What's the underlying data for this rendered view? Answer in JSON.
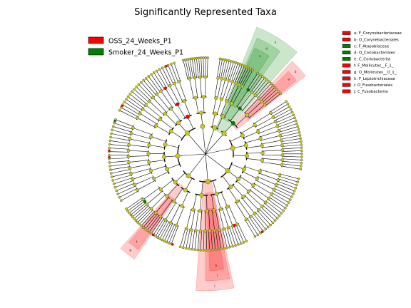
{
  "figure": {
    "title": "Significantly Represented Taxa"
  },
  "colors": {
    "oss": "#ff0000",
    "smoker": "#008000",
    "node_default": "#c8c819",
    "edge": "#000000"
  },
  "groups": [
    {
      "name": "OSS_24_Weeks_P1",
      "color": "#ff0000"
    },
    {
      "name": "Smoker_24_Weeks_P1",
      "color": "#008000"
    }
  ],
  "taxa_key": [
    {
      "letter": "a",
      "text": "a: F_Corynebacteriaceae",
      "group": "oss"
    },
    {
      "letter": "b",
      "text": "b: O_Corynebacteriales",
      "group": "oss"
    },
    {
      "letter": "c",
      "text": "c: F_Atopobiaceae",
      "group": "smoker"
    },
    {
      "letter": "d",
      "text": "d: O_Coriobacteriales",
      "group": "smoker"
    },
    {
      "letter": "e",
      "text": "e: C_Coriobacteriia",
      "group": "smoker"
    },
    {
      "letter": "f",
      "text": "f: F_Mollicutes__F_1_",
      "group": "oss"
    },
    {
      "letter": "g",
      "text": "g: O_Mollicutes__O_1_",
      "group": "oss"
    },
    {
      "letter": "h",
      "text": "h: F_Leptotrichiaceae",
      "group": "oss"
    },
    {
      "letter": "i",
      "text": "i: O_Fusobacteriales",
      "group": "oss"
    },
    {
      "letter": "j",
      "text": "j: C_Fusobacteriia",
      "group": "oss"
    }
  ],
  "highlighted_clades": [
    {
      "letter": "e",
      "group": "smoker",
      "level": 1
    },
    {
      "letter": "d",
      "group": "smoker",
      "level": 2
    },
    {
      "letter": "c",
      "group": "smoker",
      "level": 3
    },
    {
      "letter": "b",
      "group": "oss",
      "level": 2
    },
    {
      "letter": "a",
      "group": "oss",
      "level": 3
    },
    {
      "letter": "j",
      "group": "oss",
      "level": 1
    },
    {
      "letter": "i",
      "group": "oss",
      "level": 2
    },
    {
      "letter": "h",
      "group": "oss",
      "level": 3
    },
    {
      "letter": "g",
      "group": "oss",
      "level": 2
    },
    {
      "letter": "f",
      "group": "oss",
      "level": 3
    }
  ]
}
